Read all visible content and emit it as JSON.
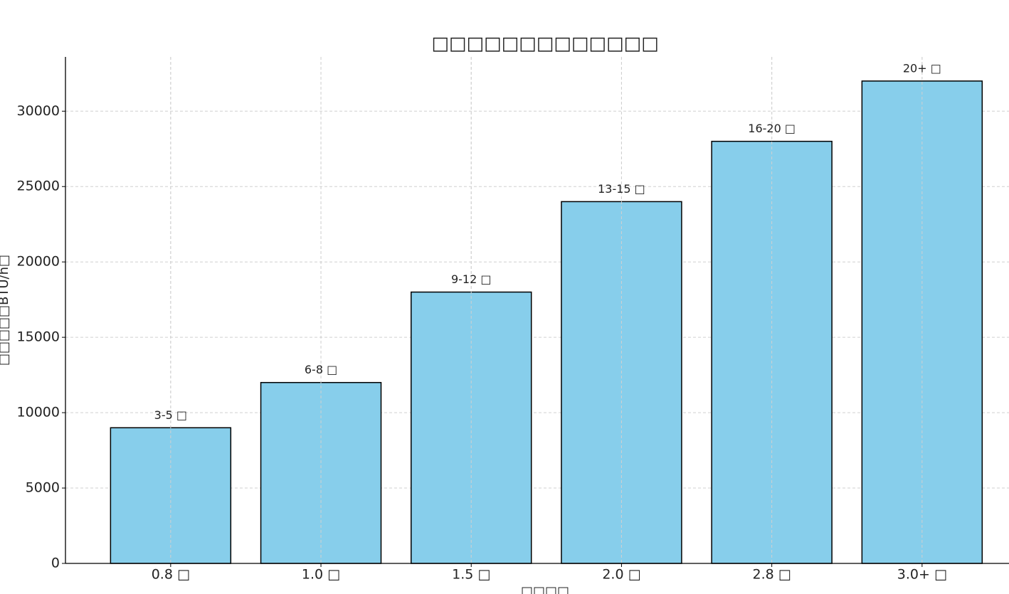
{
  "chart_data": {
    "type": "bar",
    "title": "□□□□□□□□□□□□□",
    "x_label": "□□□□",
    "y_label": "□□□□□BTU/h□",
    "categories": [
      "0.8 □",
      "1.0 □",
      "1.5 □",
      "2.0 □",
      "2.8 □",
      "3.0+ □"
    ],
    "values": [
      9000,
      12000,
      18000,
      24000,
      28000,
      32000
    ],
    "annotations": [
      "3-5 □",
      "6-8 □",
      "9-12 □",
      "13-15 □",
      "16-20 □",
      "20+ □"
    ],
    "color": "#87ceeb",
    "edge_color": "#000000",
    "ylim": [
      0,
      33600
    ],
    "yticks": [
      0,
      5000,
      10000,
      15000,
      20000,
      25000,
      30000
    ],
    "grid": true
  }
}
